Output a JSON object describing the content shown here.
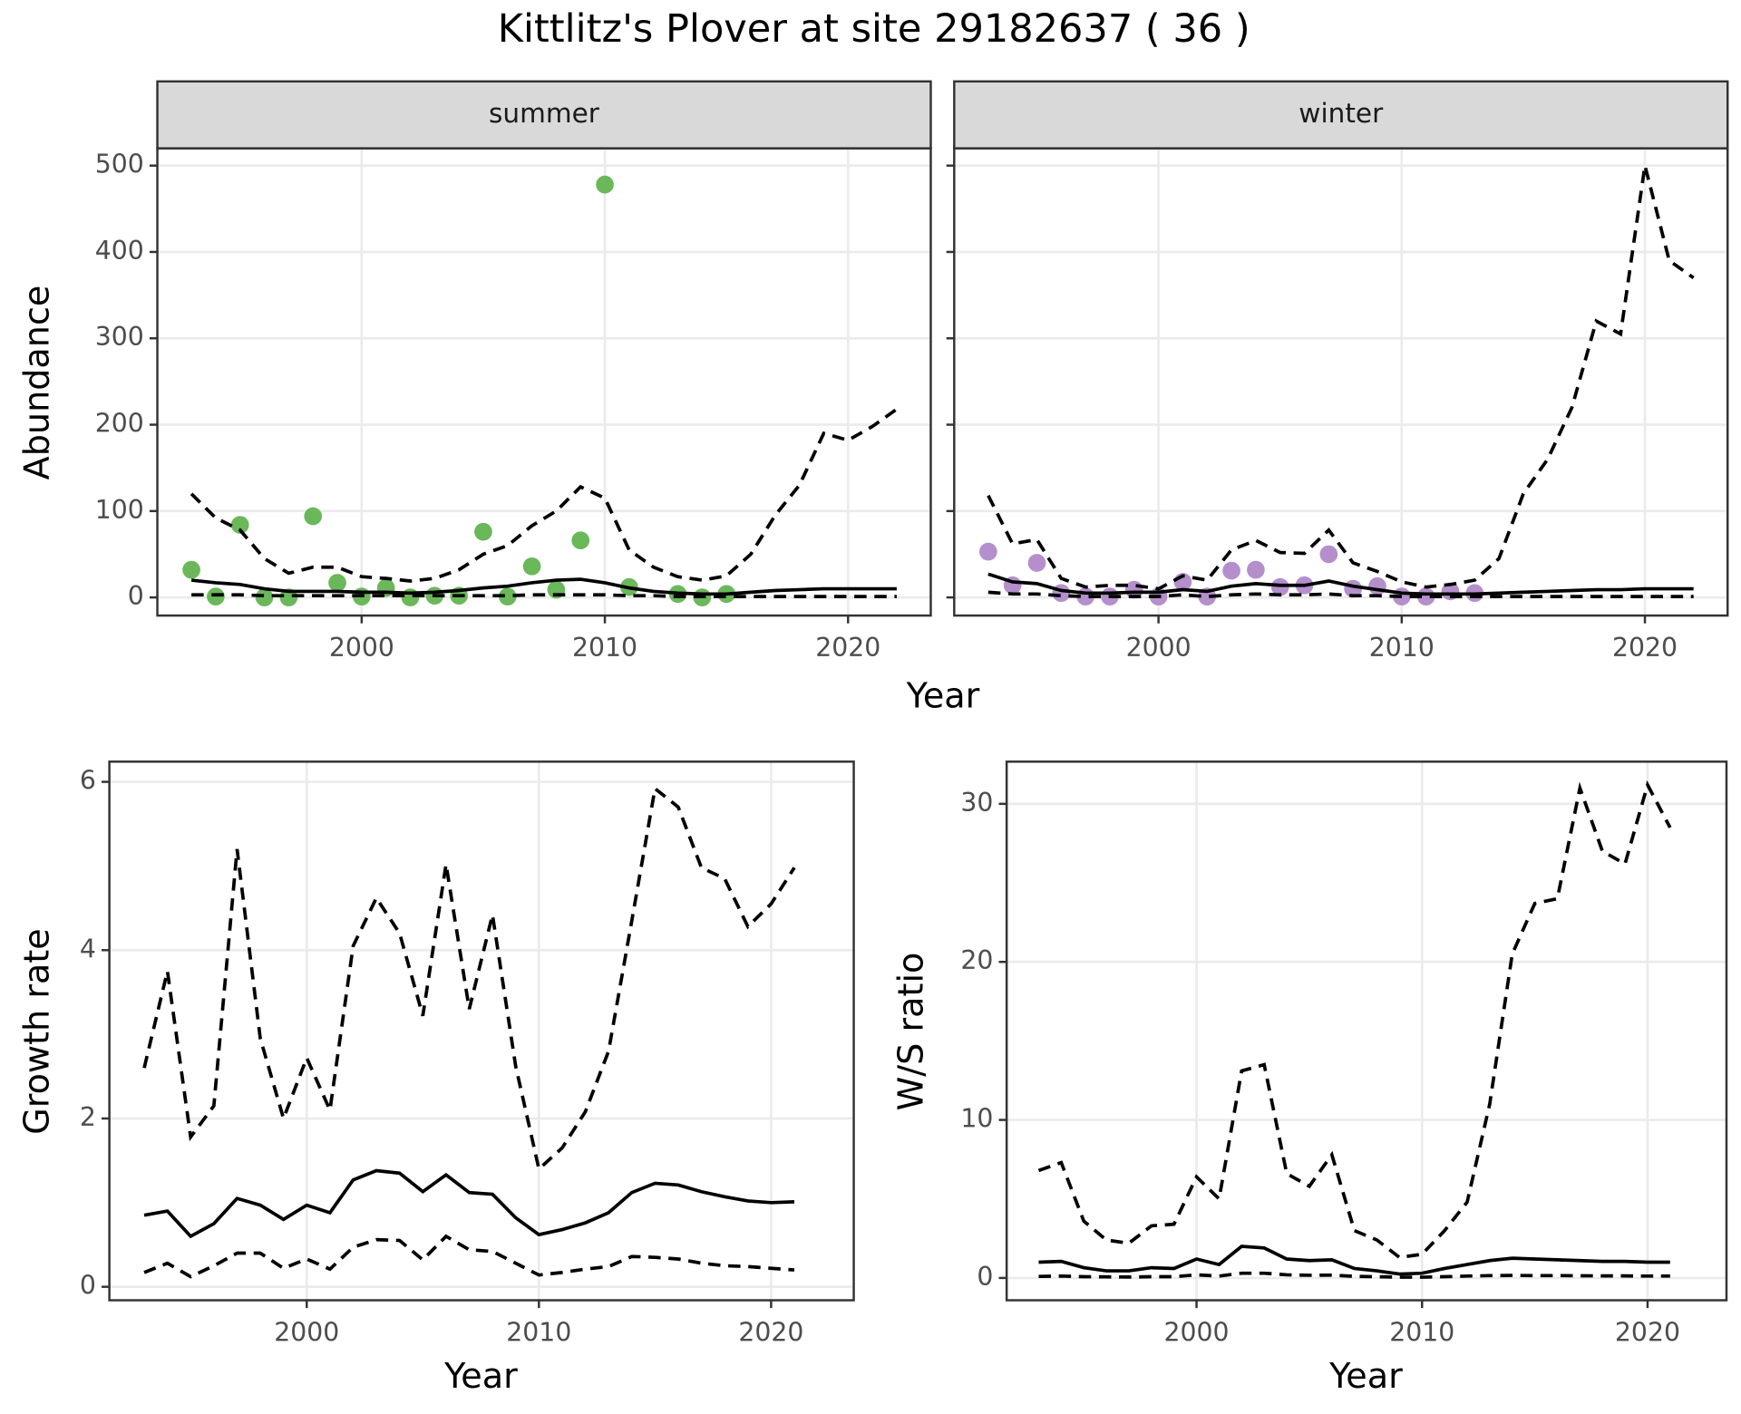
{
  "title": "Kittlitz's Plover at site 29182637 ( 36 )",
  "chart_data": [
    {
      "type": "line",
      "panel": "summer",
      "ylabel": "Abundance",
      "xlabel": "Year",
      "x": [
        1993,
        1994,
        1995,
        1996,
        1997,
        1998,
        1999,
        2000,
        2001,
        2002,
        2003,
        2004,
        2005,
        2006,
        2007,
        2008,
        2009,
        2010,
        2011,
        2012,
        2013,
        2014,
        2015,
        2016,
        2017,
        2018,
        2019,
        2020,
        2021,
        2022
      ],
      "xlim": [
        1991.6,
        2023.4
      ],
      "xticks": [
        2000,
        2010,
        2020
      ],
      "ylim": [
        -21,
        520
      ],
      "yticks": [
        0,
        100,
        200,
        300,
        400,
        500
      ],
      "y_tick_labels": true,
      "grid": true,
      "series": [
        {
          "style": "points",
          "color": "#6ab85a",
          "values": [
            32,
            1,
            84,
            0,
            0,
            94,
            17,
            1,
            11,
            0,
            2,
            2,
            76,
            1,
            36,
            9,
            66,
            478,
            12,
            null,
            4,
            0,
            4,
            null,
            null,
            null,
            null,
            null,
            null,
            null
          ]
        },
        {
          "style": "solid",
          "color": "#000000",
          "values": [
            20,
            17,
            15,
            10,
            7,
            7,
            7,
            6,
            6,
            5,
            6,
            8,
            11,
            13,
            17,
            20,
            21,
            17,
            11,
            7,
            5,
            4,
            4,
            6,
            8,
            9,
            10,
            10,
            10,
            10
          ]
        },
        {
          "style": "dashed",
          "color": "#000000",
          "values": [
            120,
            92,
            78,
            45,
            28,
            35,
            35,
            24,
            22,
            19,
            22,
            32,
            50,
            60,
            83,
            100,
            128,
            115,
            55,
            35,
            24,
            20,
            25,
            50,
            95,
            130,
            190,
            182,
            198,
            218
          ]
        },
        {
          "style": "dashed",
          "color": "#000000",
          "values": [
            3,
            3,
            3,
            2,
            2,
            2,
            2,
            2,
            2,
            2,
            2,
            2,
            2,
            2,
            3,
            3,
            3,
            3,
            2,
            2,
            1,
            1,
            1,
            1,
            1,
            1,
            1,
            1,
            1,
            1
          ]
        }
      ]
    },
    {
      "type": "line",
      "panel": "winter",
      "x": [
        1993,
        1994,
        1995,
        1996,
        1997,
        1998,
        1999,
        2000,
        2001,
        2002,
        2003,
        2004,
        2005,
        2006,
        2007,
        2008,
        2009,
        2010,
        2011,
        2012,
        2013,
        2014,
        2015,
        2016,
        2017,
        2018,
        2019,
        2020,
        2021,
        2022
      ],
      "xlim": [
        1991.6,
        2023.4
      ],
      "xticks": [
        2000,
        2010,
        2020
      ],
      "ylim": [
        -21,
        520
      ],
      "yticks": [
        0,
        100,
        200,
        300,
        400,
        500
      ],
      "y_tick_labels": false,
      "grid": true,
      "series": [
        {
          "style": "points",
          "color": "#b48fcc",
          "values": [
            53,
            14,
            40,
            5,
            1,
            1,
            9,
            1,
            18,
            1,
            31,
            32,
            12,
            14,
            50,
            10,
            13,
            1,
            1,
            7,
            5,
            null,
            null,
            null,
            null,
            null,
            null,
            null,
            null,
            null
          ]
        },
        {
          "style": "solid",
          "color": "#000000",
          "values": [
            27,
            18,
            16,
            8,
            5,
            5,
            6,
            6,
            9,
            7,
            13,
            16,
            14,
            14,
            19,
            13,
            9,
            5,
            4,
            4,
            4,
            5,
            6,
            7,
            8,
            9,
            9,
            10,
            10,
            10
          ]
        },
        {
          "style": "dashed",
          "color": "#000000",
          "values": [
            118,
            62,
            67,
            22,
            12,
            14,
            14,
            10,
            25,
            20,
            55,
            66,
            52,
            51,
            78,
            40,
            30,
            18,
            12,
            15,
            20,
            45,
            120,
            160,
            220,
            320,
            305,
            500,
            390,
            370
          ]
        },
        {
          "style": "dashed",
          "color": "#000000",
          "values": [
            6,
            4,
            4,
            2,
            1,
            1,
            1,
            1,
            3,
            1,
            3,
            4,
            3,
            3,
            4,
            2,
            2,
            1,
            1,
            1,
            1,
            1,
            1,
            1,
            1,
            1,
            1,
            1,
            1,
            1
          ]
        }
      ]
    },
    {
      "type": "line",
      "ylabel": "Growth rate",
      "xlabel": "Year",
      "x": [
        1993,
        1994,
        1995,
        1996,
        1997,
        1998,
        1999,
        2000,
        2001,
        2002,
        2003,
        2004,
        2005,
        2006,
        2007,
        2008,
        2009,
        2010,
        2011,
        2012,
        2013,
        2014,
        2015,
        2016,
        2017,
        2018,
        2019,
        2020,
        2021
      ],
      "xlim": [
        1991.5,
        2023.56
      ],
      "xticks": [
        2000,
        2010,
        2020
      ],
      "ylim": [
        -0.16,
        6.24
      ],
      "yticks": [
        0,
        2,
        4,
        6
      ],
      "y_tick_labels": true,
      "grid": true,
      "series": [
        {
          "style": "solid",
          "color": "#000000",
          "values": [
            0.85,
            0.9,
            0.6,
            0.75,
            1.05,
            0.97,
            0.8,
            0.97,
            0.88,
            1.27,
            1.38,
            1.35,
            1.13,
            1.33,
            1.12,
            1.1,
            0.82,
            0.62,
            0.68,
            0.76,
            0.88,
            1.12,
            1.23,
            1.21,
            1.13,
            1.07,
            1.02,
            1.0,
            1.01
          ]
        },
        {
          "style": "dashed",
          "color": "#000000",
          "values": [
            2.6,
            3.75,
            1.78,
            2.15,
            5.2,
            2.95,
            2.0,
            2.72,
            2.1,
            4.05,
            4.62,
            4.2,
            3.22,
            5.02,
            3.3,
            4.42,
            2.62,
            1.4,
            1.65,
            2.08,
            2.8,
            4.35,
            5.92,
            5.7,
            4.98,
            4.85,
            4.28,
            4.55,
            4.98
          ]
        },
        {
          "style": "dashed",
          "color": "#000000",
          "values": [
            0.17,
            0.28,
            0.12,
            0.25,
            0.4,
            0.4,
            0.22,
            0.33,
            0.21,
            0.47,
            0.56,
            0.55,
            0.32,
            0.6,
            0.44,
            0.42,
            0.28,
            0.14,
            0.17,
            0.21,
            0.24,
            0.36,
            0.35,
            0.33,
            0.28,
            0.25,
            0.24,
            0.22,
            0.2
          ]
        }
      ]
    },
    {
      "type": "line",
      "ylabel": "W/S ratio",
      "xlabel": "Year",
      "x": [
        1993,
        1994,
        1995,
        1996,
        1997,
        1998,
        1999,
        2000,
        2001,
        2002,
        2003,
        2004,
        2005,
        2006,
        2007,
        2008,
        2009,
        2010,
        2011,
        2012,
        2013,
        2014,
        2015,
        2016,
        2017,
        2018,
        2019,
        2020,
        2021
      ],
      "xlim": [
        1991.58,
        2023.5
      ],
      "xticks": [
        2000,
        2010,
        2020
      ],
      "ylim": [
        -1.41,
        32.67
      ],
      "yticks": [
        0,
        10,
        20,
        30
      ],
      "y_tick_labels": true,
      "grid": true,
      "series": [
        {
          "style": "solid",
          "color": "#000000",
          "values": [
            1.0,
            1.05,
            0.65,
            0.45,
            0.45,
            0.65,
            0.6,
            1.2,
            0.85,
            2.0,
            1.9,
            1.2,
            1.1,
            1.15,
            0.6,
            0.45,
            0.25,
            0.3,
            0.6,
            0.85,
            1.1,
            1.25,
            1.2,
            1.15,
            1.1,
            1.05,
            1.05,
            1.0,
            1.0
          ]
        },
        {
          "style": "dashed",
          "color": "#000000",
          "values": [
            6.8,
            7.3,
            3.6,
            2.4,
            2.2,
            3.3,
            3.4,
            6.4,
            5.0,
            13.1,
            13.5,
            6.6,
            5.8,
            7.8,
            3.0,
            2.4,
            1.3,
            1.5,
            3.0,
            4.8,
            11.0,
            20.5,
            23.7,
            24.0,
            31.0,
            27.0,
            26.2,
            31.2,
            28.5
          ]
        },
        {
          "style": "dashed",
          "color": "#000000",
          "values": [
            0.1,
            0.12,
            0.08,
            0.07,
            0.06,
            0.08,
            0.08,
            0.2,
            0.12,
            0.3,
            0.3,
            0.2,
            0.17,
            0.18,
            0.1,
            0.08,
            0.05,
            0.05,
            0.08,
            0.12,
            0.15,
            0.16,
            0.15,
            0.15,
            0.14,
            0.13,
            0.13,
            0.12,
            0.12
          ]
        }
      ]
    }
  ]
}
